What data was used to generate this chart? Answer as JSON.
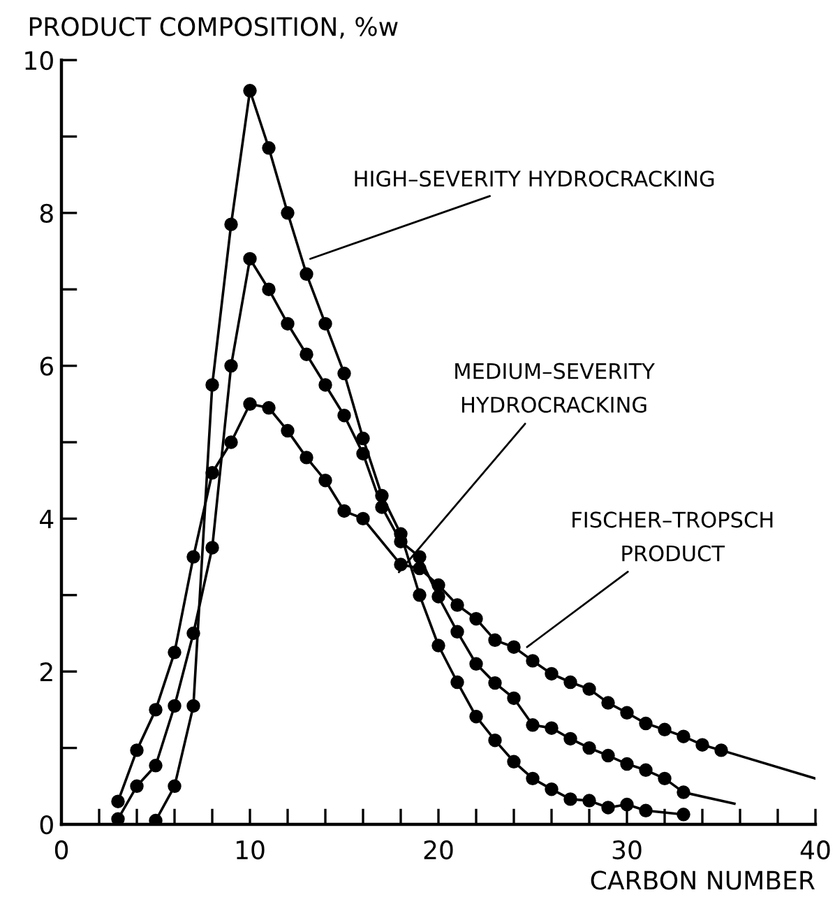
{
  "chart_data": {
    "type": "line",
    "ylabel": "PRODUCT COMPOSITION, %w",
    "xlabel": "CARBON NUMBER",
    "xlim": [
      0,
      40
    ],
    "ylim": [
      0,
      10
    ],
    "xticks": [
      0,
      {
        "value": 2,
        "label": null
      },
      {
        "value": 4,
        "label": null
      },
      {
        "value": 6,
        "label": null
      },
      {
        "value": 8,
        "label": null
      },
      10,
      {
        "value": 12,
        "label": null
      },
      {
        "value": 14,
        "label": null
      },
      {
        "value": 16,
        "label": null
      },
      {
        "value": 18,
        "label": null
      },
      20,
      {
        "value": 22,
        "label": null
      },
      {
        "value": 24,
        "label": null
      },
      {
        "value": 26,
        "label": null
      },
      {
        "value": 28,
        "label": null
      },
      30,
      {
        "value": 32,
        "label": null
      },
      {
        "value": 34,
        "label": null
      },
      {
        "value": 36,
        "label": null
      },
      {
        "value": 38,
        "label": null
      },
      40
    ],
    "yticks": [
      0,
      {
        "value": 1,
        "label": null
      },
      2,
      {
        "value": 3,
        "label": null
      },
      4,
      {
        "value": 5,
        "label": null
      },
      6,
      {
        "value": 7,
        "label": null
      },
      8,
      {
        "value": 9,
        "label": null
      },
      10
    ],
    "grid": false,
    "legend": false,
    "marker": "circle",
    "line_style": "solid",
    "series": [
      {
        "color": "#000000",
        "x": [
          5,
          6,
          7,
          8,
          9,
          10,
          11,
          12,
          13,
          14,
          15,
          16,
          17,
          18,
          19,
          20,
          21,
          22,
          23,
          24,
          25,
          26,
          27,
          28,
          29,
          30,
          31,
          33
        ],
        "values": [
          0.05,
          0.5,
          1.55,
          5.75,
          7.85,
          9.6,
          8.85,
          8.0,
          7.2,
          6.55,
          5.9,
          5.05,
          4.3,
          3.8,
          3.0,
          2.34,
          1.86,
          1.41,
          1.1,
          0.82,
          0.6,
          0.46,
          0.33,
          0.31,
          0.22,
          0.26,
          0.18,
          0.13
        ]
      },
      {
        "color": "#000000",
        "x": [
          3,
          4,
          5,
          6,
          7,
          8,
          9,
          10,
          11,
          12,
          13,
          14,
          15,
          16,
          17,
          18,
          19,
          20,
          21,
          22,
          23,
          24,
          25,
          26,
          27,
          28,
          29,
          30,
          31,
          32,
          33
        ],
        "values": [
          0.07,
          0.5,
          0.77,
          1.55,
          2.5,
          3.62,
          6.0,
          7.4,
          7.0,
          6.55,
          6.15,
          5.75,
          5.35,
          4.85,
          4.15,
          3.7,
          3.5,
          2.98,
          2.52,
          2.1,
          1.85,
          1.65,
          1.3,
          1.26,
          1.12,
          1.0,
          0.9,
          0.79,
          0.71,
          0.6,
          0.42
        ]
      },
      {
        "color": "#000000",
        "x": [
          3,
          4,
          5,
          6,
          7,
          8,
          9,
          10,
          11,
          12,
          13,
          14,
          15,
          16,
          18,
          19,
          20,
          21,
          22,
          23,
          24,
          25,
          26,
          27,
          28,
          29,
          30,
          31,
          32,
          33,
          34,
          35
        ],
        "values": [
          0.3,
          0.97,
          1.5,
          2.25,
          3.5,
          4.6,
          5.0,
          5.5,
          5.45,
          5.15,
          4.8,
          4.5,
          4.1,
          4.0,
          3.4,
          3.35,
          3.13,
          2.87,
          2.69,
          2.41,
          2.32,
          2.14,
          1.97,
          1.86,
          1.77,
          1.59,
          1.46,
          1.32,
          1.24,
          1.15,
          1.04,
          0.97
        ]
      },
      {
        "color": "#000000",
        "marker": "none",
        "x": [
          33,
          35.7
        ],
        "values": [
          0.42,
          0.27
        ]
      },
      {
        "color": "#000000",
        "marker": "none",
        "x": [
          35,
          40
        ],
        "values": [
          0.97,
          0.6
        ]
      }
    ],
    "annotations": [
      {
        "text": "HIGH–SEVERITY HYDROCRACKING",
        "x": 13.2,
        "y": 7.4
      },
      {
        "text": "MEDIUM–SEVERITY\nHYDROCRACKING",
        "x": 17.9,
        "y": 3.3
      },
      {
        "text": "FISCHER–TROPSCH\nPRODUCT",
        "x": 24.7,
        "y": 2.32
      }
    ]
  }
}
